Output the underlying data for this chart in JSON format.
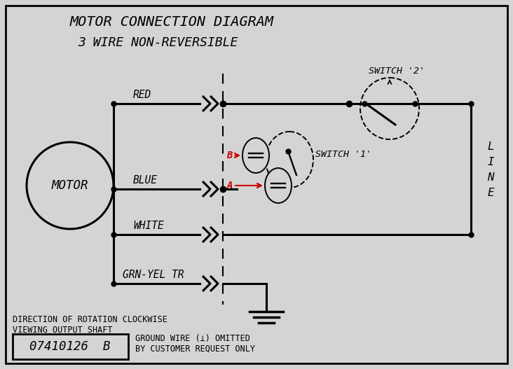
{
  "title_line1": "MOTOR CONNECTION DIAGRAM",
  "title_line2": "3 WIRE NON-REVERSIBLE",
  "bg_color": "#d4d4d4",
  "wire_color": "#000000",
  "red_wire_color": "#cc0000",
  "label_red": "RED",
  "label_blue": "BLUE",
  "label_white": "WHITE",
  "label_grn": "GRN-YEL TR",
  "label_motor": "MOTOR",
  "label_switch1": "SWITCH '1'",
  "label_switch2": "SWITCH '2'",
  "label_B": "B",
  "label_A": "A",
  "label_part_num": "07410126  B",
  "label_ground": "GROUND WIRE (⊥) OMITTED\nBY CUSTOMER REQUEST ONLY",
  "label_direction": "DIRECTION OF ROTATION CLOCKWISE\nVIEWING OUTPUT SHAFT",
  "font_color": "#000000",
  "figw": 7.32,
  "figh": 5.27,
  "dpi": 100
}
